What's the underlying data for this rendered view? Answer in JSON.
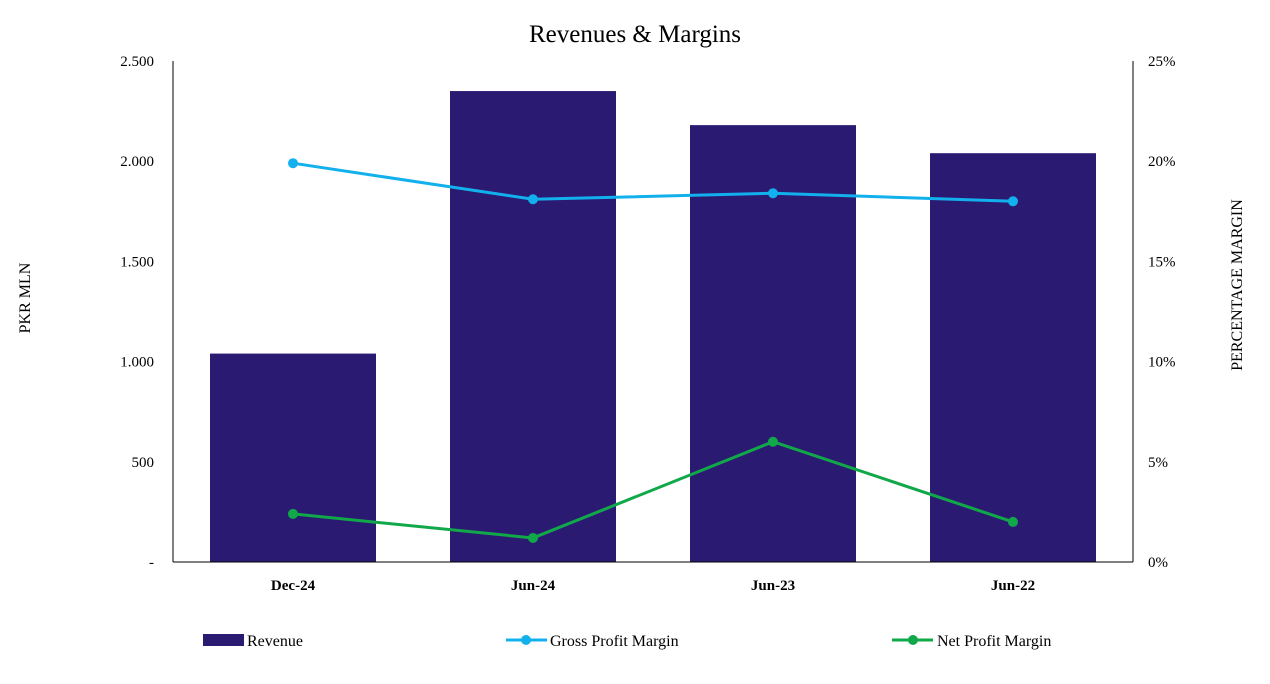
{
  "chart_data": {
    "type": "bar",
    "title": "Revenues  & Margins",
    "categories": [
      "Dec-24",
      "Jun-24",
      "Jun-23",
      "Jun-22"
    ],
    "ylabel": "PKR MLN",
    "y2label": "PERCENTAGE MARGIN",
    "ylim": [
      0,
      2500
    ],
    "y2lim": [
      0,
      25
    ],
    "yticks": [
      "-",
      "500",
      "1.000",
      "1.500",
      "2.000",
      "2.500"
    ],
    "y2ticks": [
      "0%",
      "5%",
      "10%",
      "15%",
      "20%",
      "25%"
    ],
    "bar_series": {
      "name": "Revenue",
      "values": [
        1040,
        2350,
        2180,
        2040
      ],
      "color": "#2b1a72"
    },
    "line_series": [
      {
        "name": "Gross Profit Margin",
        "values": [
          19.9,
          18.1,
          18.4,
          18.0
        ],
        "color": "#12b0ec"
      },
      {
        "name": "Net Profit Margin",
        "values": [
          2.4,
          1.2,
          6.0,
          2.0
        ],
        "color": "#11a84a"
      }
    ],
    "grid": false,
    "legend_position": "bottom"
  }
}
